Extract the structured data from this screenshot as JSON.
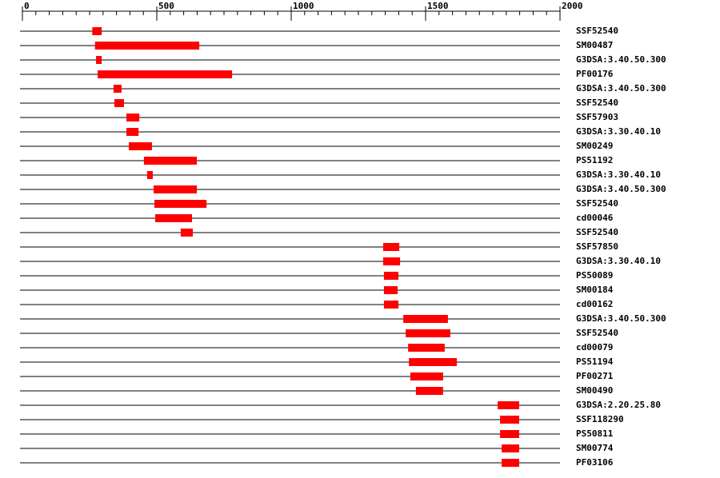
{
  "chart_data": {
    "type": "range",
    "categories": [
      "SSF52540",
      "SM00487",
      "G3DSA:3.40.50.300",
      "PF00176",
      "G3DSA:3.40.50.300",
      "SSF52540",
      "SSF57903",
      "G3DSA:3.30.40.10",
      "SM00249",
      "PS51192",
      "G3DSA:3.30.40.10",
      "G3DSA:3.40.50.300",
      "SSF52540",
      "cd00046",
      "SSF52540",
      "SSF57850",
      "G3DSA:3.30.40.10",
      "PS50089",
      "SM00184",
      "cd00162",
      "G3DSA:3.40.50.300",
      "SSF52540",
      "cd00079",
      "PS51194",
      "PF00271",
      "SM00490",
      "G3DSA:2.20.25.80",
      "SSF118290",
      "PS50811",
      "SM00774",
      "PF03106"
    ],
    "starts": [
      260,
      270,
      274,
      280,
      339,
      342,
      387,
      387,
      396,
      452,
      464,
      488,
      491,
      494,
      589,
      1342,
      1342,
      1345,
      1345,
      1345,
      1417,
      1426,
      1435,
      1438,
      1443,
      1464,
      1768,
      1777,
      1777,
      1783,
      1783
    ],
    "ends": [
      295,
      658,
      295,
      780,
      369,
      378,
      435,
      432,
      482,
      649,
      485,
      649,
      685,
      631,
      634,
      1402,
      1405,
      1399,
      1396,
      1399,
      1583,
      1592,
      1571,
      1616,
      1565,
      1565,
      1848,
      1848,
      1848,
      1848,
      1848
    ],
    "color": "#ff0000",
    "xlim": [
      0,
      2000
    ],
    "xticks": [
      0,
      500,
      1000,
      1500,
      2000
    ],
    "xminorticks": [
      0,
      50,
      100,
      150,
      200,
      250,
      300,
      350,
      400,
      450,
      500,
      550,
      600,
      650,
      700,
      750,
      800,
      850,
      900,
      950,
      1000,
      1050,
      1100,
      1150,
      1200,
      1250,
      1300,
      1350,
      1400,
      1450,
      1500,
      1550,
      1600,
      1650,
      1700,
      1750,
      1800,
      1850,
      1900,
      1950,
      2000
    ]
  }
}
